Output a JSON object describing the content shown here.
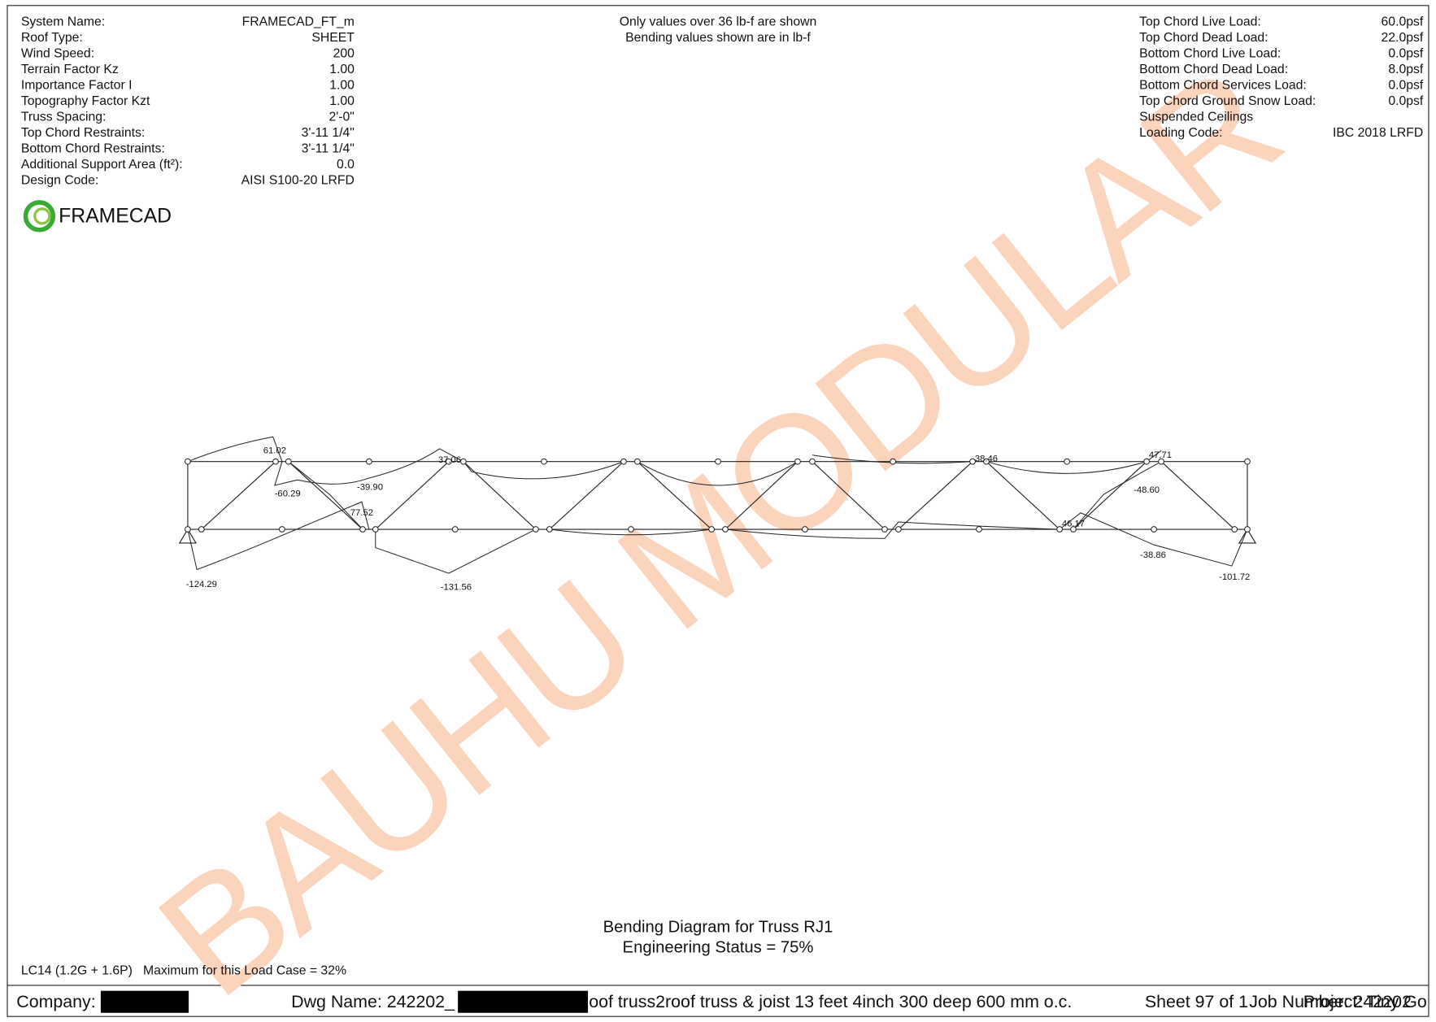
{
  "header": {
    "left": [
      {
        "label": "System Name:",
        "value": "FRAMECAD_FT_m"
      },
      {
        "label": "Roof Type:",
        "value": "SHEET"
      },
      {
        "label": "Wind Speed:",
        "value": "200"
      },
      {
        "label": "Terrain Factor Kz",
        "value": "1.00"
      },
      {
        "label": "Importance Factor I",
        "value": "1.00"
      },
      {
        "label": "Topography Factor Kzt",
        "value": "1.00"
      },
      {
        "label": "Truss Spacing:",
        "value": "2'-0\""
      },
      {
        "label": "Top Chord Restraints:",
        "value": "3'-11 1/4\""
      },
      {
        "label": "Bottom Chord Restraints:",
        "value": "3'-11 1/4\""
      },
      {
        "label": "Additional Support Area (ft²):",
        "value": "0.0"
      },
      {
        "label": "Design Code:",
        "value": "AISI S100-20 LRFD"
      }
    ],
    "notes": [
      "Only values over 36 lb-f are shown",
      "Bending values shown are in lb-f"
    ],
    "right": [
      {
        "label": "Top Chord Live Load:",
        "value": "60.0psf"
      },
      {
        "label": "Top Chord Dead Load:",
        "value": "22.0psf"
      },
      {
        "label": "Bottom Chord Live Load:",
        "value": "0.0psf"
      },
      {
        "label": "Bottom Chord Dead Load:",
        "value": "8.0psf"
      },
      {
        "label": "Bottom Chord Services Load:",
        "value": "0.0psf"
      },
      {
        "label": "Top Chord Ground Snow Load:",
        "value": "0.0psf"
      },
      {
        "label": "Suspended Ceilings",
        "value": null
      },
      {
        "label": "Loading Code:",
        "value": "IBC 2018 LRFD"
      }
    ]
  },
  "logo": "FRAMECAD",
  "watermark": "BAUHU MODULAR",
  "diagram": {
    "labels": [
      "61.02",
      "-60.29",
      "-39.90",
      "77.52",
      "-124.29",
      "37.06",
      "-131.56",
      "38.46",
      "46.17",
      "47.71",
      "-48.60",
      "-38.86",
      "-101.72"
    ]
  },
  "title": "Bending Diagram for Truss RJ1",
  "status": "Engineering Status = 75%",
  "load_case": "LC14 (1.2G + 1.6P)   Maximum for this Load Case = 32%",
  "footer": {
    "company": "Company:",
    "dwg_prefix": "Dwg Name: 242202_",
    "dwg_suffix": "oof truss2roof truss & joist 13 feet 4inch 300 deep 600 mm o.c.",
    "sheet": "Sheet 97 of 1",
    "job": "Job Number: 242202",
    "project": "Project: Tiny Go"
  }
}
